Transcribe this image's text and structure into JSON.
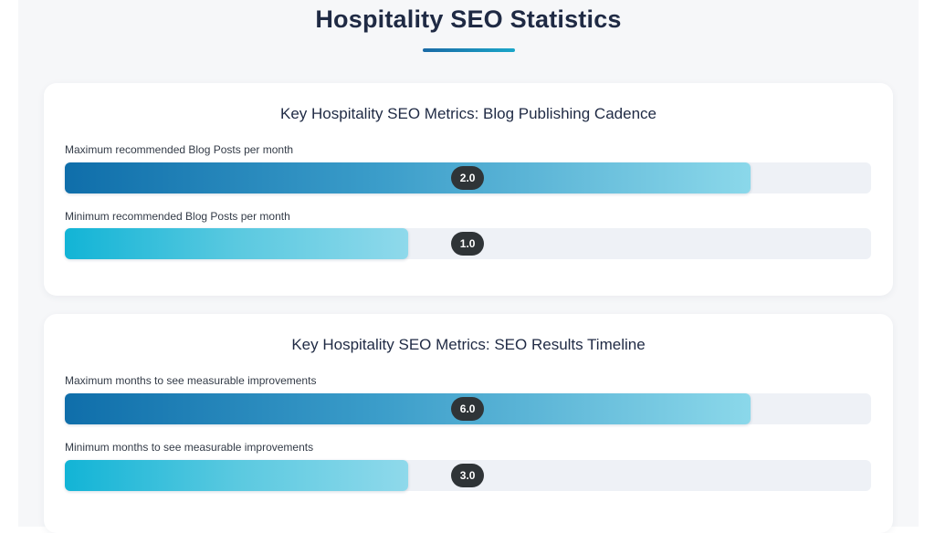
{
  "page": {
    "title": "Hospitality SEO Statistics"
  },
  "chart_data": [
    {
      "type": "bar",
      "orientation": "horizontal",
      "title": "Key Hospitality SEO Metrics: Blog Publishing Cadence",
      "categories": [
        "Maximum recommended Blog Posts per month",
        "Minimum recommended Blog Posts per month"
      ],
      "values": [
        2.0,
        1.0
      ],
      "value_labels": [
        "2.0",
        "1.0"
      ],
      "xlim": [
        0,
        2.35
      ],
      "colors": [
        "#0f6eaa",
        "#12b4d6"
      ]
    },
    {
      "type": "bar",
      "orientation": "horizontal",
      "title": "Key Hospitality SEO Metrics: SEO Results Timeline",
      "categories": [
        "Maximum months to see measurable improvements",
        "Minimum months to see measurable improvements"
      ],
      "values": [
        6.0,
        3.0
      ],
      "value_labels": [
        "6.0",
        "3.0"
      ],
      "xlim": [
        0,
        7.05
      ],
      "colors": [
        "#0f6eaa",
        "#12b4d6"
      ]
    }
  ]
}
